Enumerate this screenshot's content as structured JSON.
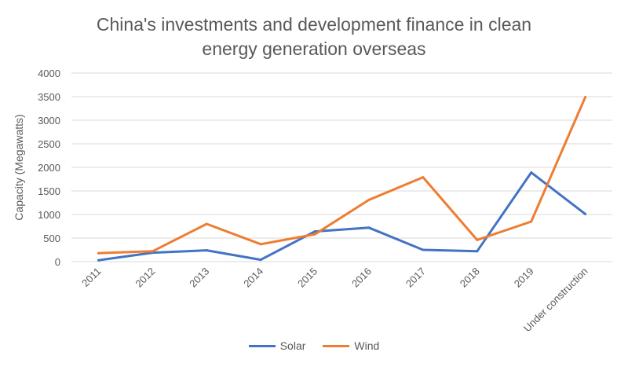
{
  "chart_data": {
    "type": "line",
    "title_line1": "China's investments and development finance in clean",
    "title_line2": "energy generation overseas",
    "xlabel": "",
    "ylabel": "Capacity (Megawatts)",
    "categories": [
      "2011",
      "2012",
      "2013",
      "2014",
      "2015",
      "2016",
      "2017",
      "2018",
      "2019",
      "Under construction"
    ],
    "ylim": [
      0,
      4000
    ],
    "yticks": [
      "0",
      "500",
      "1000",
      "1500",
      "2000",
      "2500",
      "3000",
      "3500",
      "4000"
    ],
    "grid": true,
    "legend_position": "bottom",
    "series": [
      {
        "name": "Solar",
        "color": "#4472c4",
        "values": [
          30,
          190,
          240,
          40,
          640,
          720,
          250,
          220,
          1890,
          1010
        ]
      },
      {
        "name": "Wind",
        "color": "#ed7d31",
        "values": [
          180,
          220,
          800,
          370,
          580,
          1310,
          1790,
          460,
          850,
          3490
        ]
      }
    ]
  }
}
